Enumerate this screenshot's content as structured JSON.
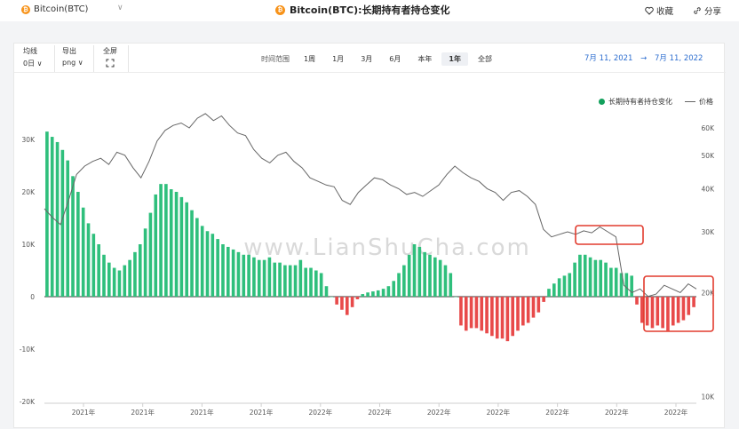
{
  "header": {
    "coin_label": "Bitcoin(BTC)",
    "coin_glyph": "₿",
    "title": "Bitcoin(BTC):长期持有者持仓变化",
    "favorite_label": "收藏",
    "share_label": "分享"
  },
  "controls": {
    "ma_label": "均线",
    "ma_value": "0日 ∨",
    "export_label": "导出",
    "export_value": "png ∨",
    "fullscreen_label": "全屏",
    "range_label": "时间范围",
    "ranges": [
      "1周",
      "1月",
      "3月",
      "6月",
      "本年",
      "1年",
      "全部"
    ],
    "active_range": "1年",
    "date_start": "7月 11, 2021",
    "date_arrow": "→",
    "date_end": "7月 11, 2022"
  },
  "watermark": "www.LianShuCha.com",
  "colors": {
    "positive": "#2fbf7c",
    "negative": "#e84a4a",
    "price": "#666666",
    "highlight": "#e23b2e"
  },
  "chart_data": {
    "type": "bar",
    "title": "Bitcoin(BTC):长期持有者持仓变化",
    "legend": [
      "长期持有者持仓变化",
      "价格"
    ],
    "legend_position": "top-right",
    "y_left_ticks": [
      "30K",
      "20K",
      "10K",
      "0",
      "-10K",
      "-20K"
    ],
    "y_left_range": [
      -20000,
      32000
    ],
    "y_right_ticks": [
      "60K",
      "50K",
      "40K",
      "30K",
      "20K",
      "10K"
    ],
    "y_right_scale": "log",
    "x_ticks": [
      "2021年",
      "2021年",
      "2021年",
      "2021年",
      "2022年",
      "2022年",
      "2022年",
      "2022年",
      "2022年",
      "2022年",
      "2022年"
    ],
    "grid": false,
    "series": [
      {
        "name": "长期持有者持仓变化",
        "type": "bar",
        "values": [
          31500,
          30500,
          29500,
          28000,
          26000,
          23000,
          20000,
          17000,
          14000,
          12000,
          10000,
          8000,
          6500,
          5500,
          5000,
          6000,
          7000,
          8500,
          10000,
          13000,
          16000,
          19500,
          21500,
          21500,
          20500,
          20000,
          19000,
          18000,
          16500,
          15000,
          13500,
          12500,
          12000,
          11000,
          10000,
          9500,
          9000,
          8500,
          8000,
          8000,
          7500,
          7000,
          7000,
          7500,
          6500,
          6500,
          6000,
          6000,
          6000,
          7000,
          5500,
          5500,
          5000,
          4500,
          2000,
          0,
          -1500,
          -2500,
          -3500,
          -2000,
          -500,
          500,
          800,
          1000,
          1200,
          1500,
          2000,
          3000,
          4500,
          6000,
          8000,
          10000,
          9500,
          8500,
          8000,
          7500,
          7000,
          6000,
          4500,
          0,
          -5500,
          -6500,
          -6000,
          -6000,
          -6500,
          -7000,
          -7500,
          -8000,
          -8000,
          -8500,
          -7500,
          -6500,
          -5500,
          -5000,
          -4000,
          -3000,
          -1000,
          1500,
          2500,
          3500,
          4000,
          4500,
          6500,
          8000,
          8000,
          7500,
          7000,
          7000,
          6500,
          5500,
          5500,
          4500,
          4500,
          4000,
          -1500,
          -5000,
          -5500,
          -6000,
          -5500,
          -6000,
          -6500,
          -5500,
          -5000,
          -4500,
          -3500,
          -2000
        ]
      },
      {
        "name": "价格",
        "type": "line",
        "values": [
          35000,
          33000,
          31500,
          37000,
          44000,
          46500,
          48000,
          49000,
          47000,
          51000,
          50000,
          46000,
          43000,
          48000,
          55000,
          59000,
          61000,
          62000,
          60000,
          64000,
          66000,
          63000,
          65000,
          61000,
          58000,
          57000,
          52000,
          49000,
          47500,
          50000,
          51000,
          48000,
          46000,
          43000,
          42000,
          41000,
          40500,
          37000,
          36000,
          39000,
          41000,
          43000,
          42500,
          41000,
          40000,
          38500,
          39000,
          38000,
          39500,
          41000,
          44000,
          46500,
          44500,
          43000,
          42000,
          40000,
          39000,
          37000,
          39000,
          39500,
          38000,
          36000,
          30500,
          29000,
          29500,
          30000,
          29500,
          30200,
          29800,
          31000,
          30000,
          29000,
          21000,
          20000,
          20500,
          19500,
          19800,
          21000,
          20500,
          20000,
          21200,
          20500
        ]
      }
    ],
    "annotations": [
      "highlight box around price 30K range (May–Jun 2022)",
      "highlight box around negative bars and price ~20K (Jun–Jul 2022)"
    ]
  }
}
